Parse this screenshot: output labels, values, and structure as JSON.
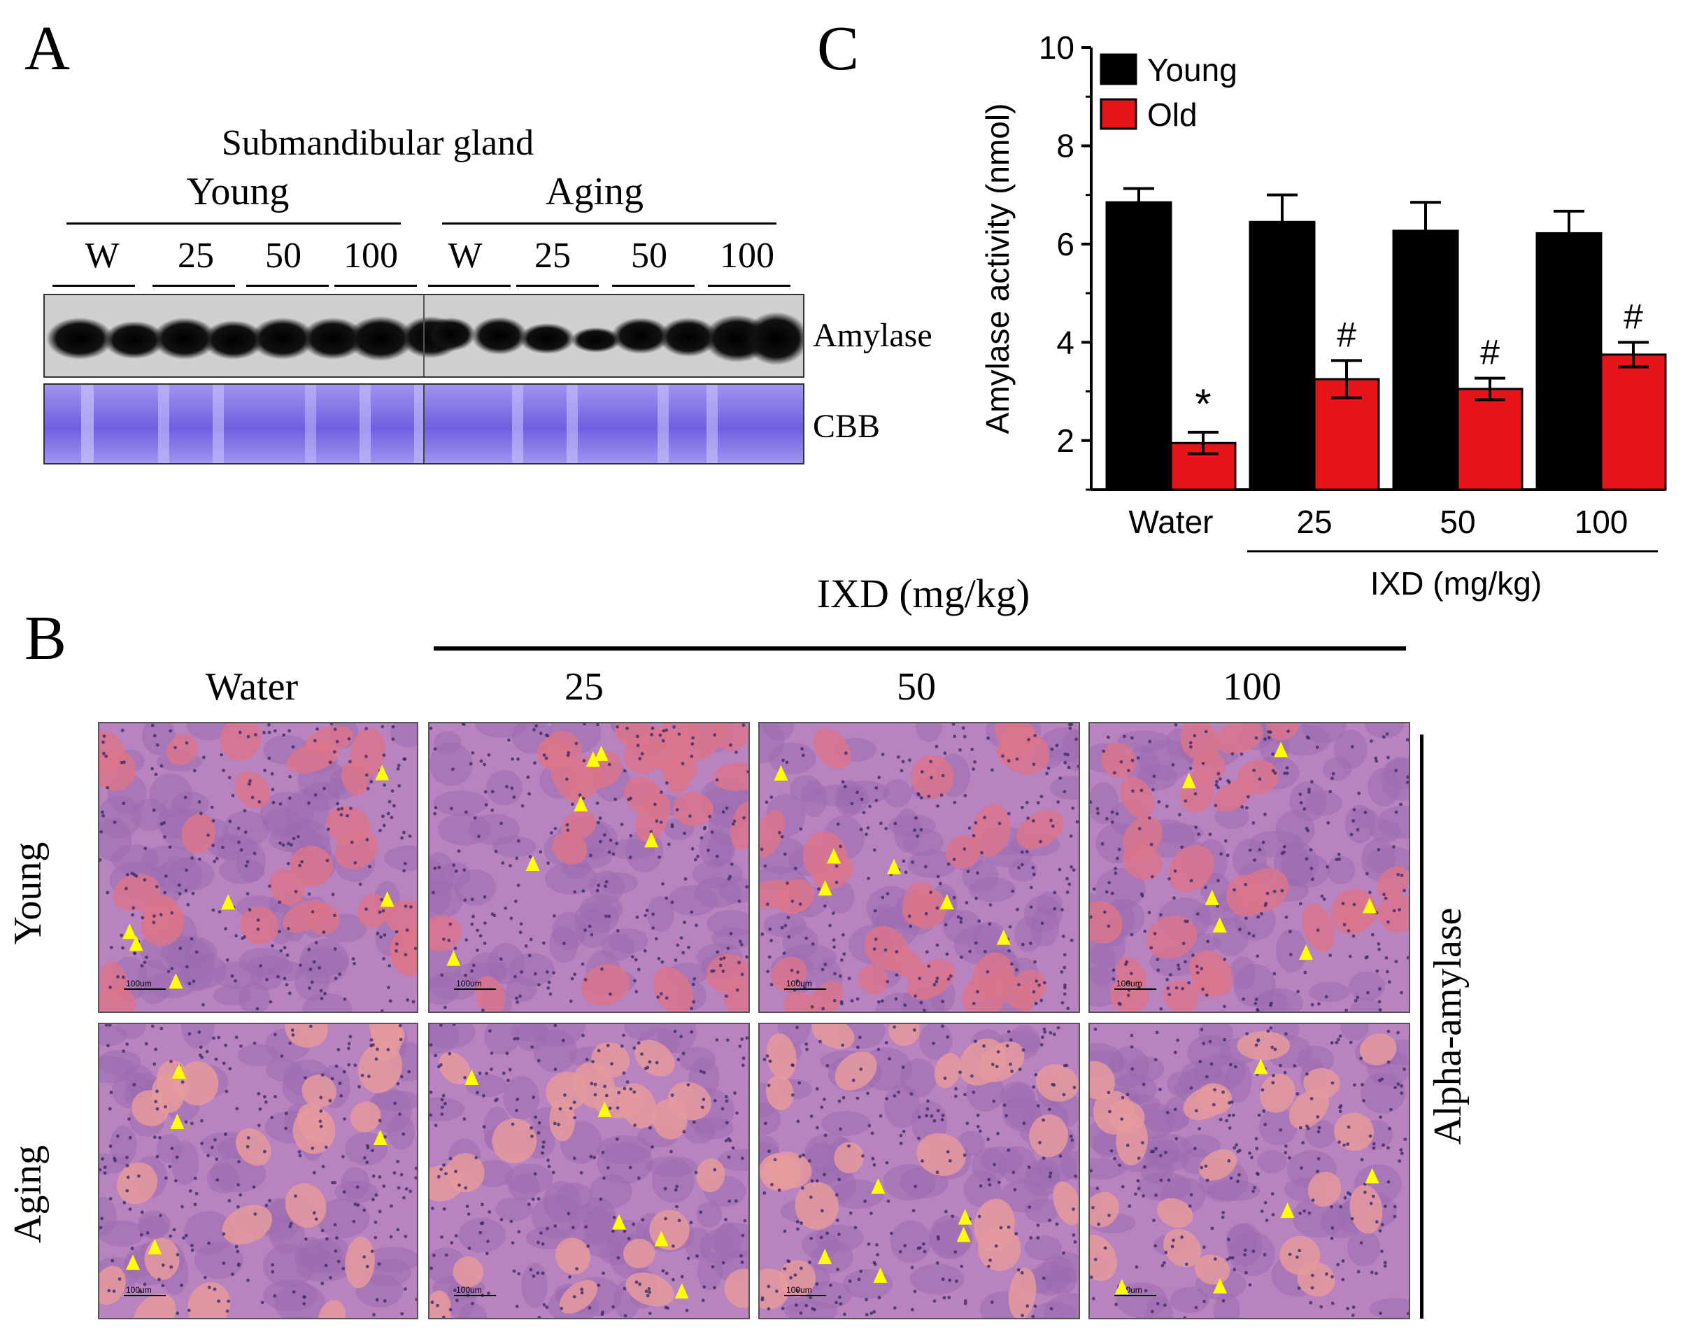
{
  "panel_a": {
    "letter": "A",
    "title": "Submandibular gland",
    "groups": [
      "Young",
      "Aging"
    ],
    "lanes": [
      "W",
      "25",
      "50",
      "100",
      "W",
      "25",
      "50",
      "100"
    ],
    "blot_labels": [
      "Amylase",
      "CBB"
    ]
  },
  "panel_b": {
    "letter": "B",
    "dose_title": "IXD (mg/kg)",
    "columns": [
      "Water",
      "25",
      "50",
      "100"
    ],
    "rows": [
      "Young",
      "Aging"
    ],
    "side_label": "Alpha-amylase",
    "scale_bar": "100um"
  },
  "panel_c": {
    "letter": "C",
    "group_label": "IXD (mg/kg)"
  },
  "colors": {
    "young": "#000000",
    "old": "#e8141b",
    "arrowhead": "#ffff00",
    "tissue": "#b47cb0",
    "cbb": "#8a7fe6"
  },
  "chart_data": {
    "type": "bar",
    "categories": [
      "Water",
      "25",
      "50",
      "100"
    ],
    "series": [
      {
        "name": "Young",
        "values": [
          6.85,
          6.45,
          6.27,
          6.22
        ],
        "errors": [
          0.28,
          0.55,
          0.58,
          0.45
        ],
        "marks": [
          "",
          "",
          "",
          ""
        ]
      },
      {
        "name": "Old",
        "values": [
          1.95,
          3.25,
          3.05,
          3.75
        ],
        "errors": [
          0.22,
          0.38,
          0.22,
          0.25
        ],
        "marks": [
          "*",
          "#",
          "#",
          "#"
        ]
      }
    ],
    "ylabel": "Amylase activity (nmol)",
    "xlabel": "IXD (mg/kg)",
    "ylim": [
      1,
      10
    ],
    "yticks": [
      2,
      4,
      6,
      8,
      10
    ],
    "legend": "top-left"
  }
}
